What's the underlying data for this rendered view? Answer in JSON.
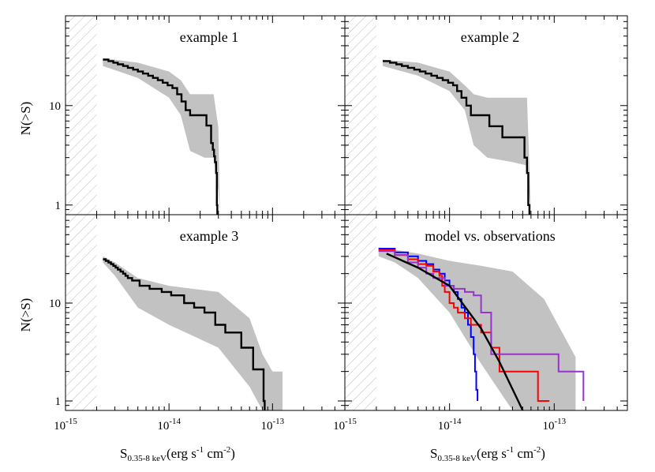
{
  "figure": {
    "ylabel": "N(>S)",
    "xlabel_main": "S",
    "xlabel_sub": "0.35-8 keV",
    "xlabel_units": "(erg s",
    "xlabel_sup1": "-1",
    "xlabel_mid": " cm",
    "xlabel_sup2": "-2",
    "xlabel_end": ")"
  },
  "chart_data": [
    {
      "type": "line",
      "title": "example 1",
      "xlabel": "",
      "ylabel": "N(>S)",
      "x_scale": "log",
      "y_scale": "log",
      "xlim": [
        1e-15,
        5e-13
      ],
      "ylim": [
        0.8,
        80
      ],
      "excluded_region_x": [
        1e-15,
        2e-15
      ],
      "step": {
        "name": "",
        "x": [
          2.3e-15,
          2.6e-15,
          2.9e-15,
          3.2e-15,
          3.6e-15,
          4e-15,
          4.5e-15,
          5e-15,
          5.6e-15,
          6.3e-15,
          7e-15,
          7.8e-15,
          8.7e-15,
          9.7e-15,
          1.08e-14,
          1.2e-14,
          1.32e-14,
          1.45e-14,
          1.6e-14,
          2.3e-14,
          2.55e-14,
          2.65e-14,
          2.72e-14,
          2.78e-14,
          2.85e-14,
          2.9e-14,
          2.93e-14
        ],
        "y": [
          29,
          28,
          27,
          26,
          25,
          24,
          23,
          22,
          21,
          20,
          19,
          18,
          17,
          16,
          15,
          13,
          11,
          9,
          8,
          6.3,
          4.2,
          3.6,
          3.1,
          2.7,
          2.1,
          1.0,
          0.8
        ]
      },
      "band": {
        "x": [
          2.3e-15,
          5e-15,
          1e-14,
          1.3e-14,
          1.6e-14,
          2.2e-14,
          2.7e-14,
          3e-14,
          3.1e-14
        ],
        "upper": [
          30,
          27,
          22,
          18,
          13,
          13,
          13,
          6,
          0.8
        ],
        "lower": [
          25,
          19,
          12,
          8,
          3.5,
          3.0,
          3.0,
          1.4,
          0.8
        ]
      }
    },
    {
      "type": "line",
      "title": "example 2",
      "xlabel": "",
      "ylabel": "",
      "x_scale": "log",
      "y_scale": "log",
      "xlim": [
        1e-15,
        5e-13
      ],
      "ylim": [
        0.8,
        80
      ],
      "excluded_region_x": [
        1e-15,
        2e-15
      ],
      "step": {
        "name": "",
        "x": [
          2.3e-15,
          2.7e-15,
          3.1e-15,
          3.5e-15,
          4e-15,
          4.6e-15,
          5.2e-15,
          5.9e-15,
          6.7e-15,
          7.6e-15,
          8.6e-15,
          9.7e-15,
          1.08e-14,
          1.18e-14,
          1.3e-14,
          1.45e-14,
          1.6e-14,
          2.4e-14,
          3.2e-14,
          5.2e-14,
          5.5e-14,
          5.65e-14,
          5.8e-14
        ],
        "y": [
          28,
          27,
          26,
          25,
          24,
          23,
          22,
          21,
          20,
          19,
          18,
          17,
          16,
          14,
          12,
          10,
          8,
          6.2,
          4.8,
          3.0,
          2.1,
          1.0,
          0.8
        ]
      },
      "band": {
        "x": [
          2.3e-15,
          5e-15,
          1e-14,
          1.4e-14,
          1.7e-14,
          2.3e-14,
          4e-14,
          5.5e-14,
          6e-14
        ],
        "upper": [
          29,
          27,
          22,
          16,
          13,
          12,
          12,
          12,
          0.8
        ],
        "lower": [
          25,
          20,
          14,
          9,
          4,
          3,
          2.7,
          2.5,
          0.8
        ]
      }
    },
    {
      "type": "line",
      "title": "example 3",
      "xlabel": "S_0.35-8 keV (erg s^-1 cm^-2)",
      "ylabel": "N(>S)",
      "x_scale": "log",
      "y_scale": "log",
      "xlim": [
        1e-15,
        5e-13
      ],
      "ylim": [
        0.8,
        80
      ],
      "excluded_region_x": [
        1e-15,
        2e-15
      ],
      "x_ticks": [
        "10^-15",
        "10^-14",
        "10^-13"
      ],
      "step": {
        "name": "",
        "x": [
          2.3e-15,
          2.45e-15,
          2.6e-15,
          2.75e-15,
          2.9e-15,
          3.05e-15,
          3.2e-15,
          3.4e-15,
          3.6e-15,
          3.8e-15,
          4e-15,
          4.4e-15,
          5.2e-15,
          6.5e-15,
          8.5e-15,
          1.05e-14,
          1.4e-14,
          1.75e-14,
          2.2e-14,
          2.8e-14,
          3.5e-14,
          5e-14,
          6.5e-14,
          8.2e-14,
          8.4e-14
        ],
        "y": [
          28,
          27,
          26,
          25,
          24,
          23,
          22,
          21,
          20,
          19,
          18,
          17,
          15,
          14,
          13,
          12,
          10,
          9,
          8.0,
          6.0,
          5.0,
          3.5,
          2.1,
          1.0,
          0.8
        ]
      },
      "band": {
        "x": [
          2.3e-15,
          3e-15,
          5e-15,
          1e-14,
          3e-14,
          6e-14,
          8e-14,
          1e-13,
          1.25e-13
        ],
        "upper": [
          30,
          26,
          18,
          15,
          13,
          7,
          3,
          2.0,
          2.0
        ],
        "lower": [
          26,
          19,
          9,
          6,
          3.5,
          1.4,
          0.8,
          0.8,
          0.8
        ]
      }
    },
    {
      "type": "line",
      "title": "model vs. observations",
      "xlabel": "S_0.35-8 keV (erg s^-1 cm^-2)",
      "ylabel": "",
      "x_scale": "log",
      "y_scale": "log",
      "xlim": [
        1e-15,
        5e-13
      ],
      "ylim": [
        0.8,
        80
      ],
      "excluded_region_x": [
        1e-15,
        2e-15
      ],
      "x_ticks": [
        "10^-15",
        "10^-14",
        "10^-13"
      ],
      "band": {
        "x": [
          2.1e-15,
          3e-15,
          5e-15,
          1e-14,
          2e-14,
          4e-14,
          8e-14,
          1.6e-13
        ],
        "upper": [
          37,
          35,
          32,
          27,
          24,
          21,
          11,
          2.8
        ],
        "lower": [
          30,
          26,
          18,
          8,
          2.4,
          0.8,
          0.8,
          0.8
        ]
      },
      "series": [
        {
          "name": "",
          "color": "#0000ff",
          "kind": "step",
          "x": [
            2.1e-15,
            3e-15,
            4e-15,
            5e-15,
            6e-15,
            7e-15,
            8e-15,
            9e-15,
            1e-14,
            1.1e-14,
            1.2e-14,
            1.3e-14,
            1.4e-14,
            1.5e-14,
            1.6e-14,
            1.7e-14,
            1.75e-14,
            1.8e-14,
            1.85e-14
          ],
          "y": [
            36,
            33,
            30,
            27,
            25,
            22,
            20,
            17,
            15,
            13,
            11,
            9,
            8,
            6,
            4.5,
            3.0,
            2.0,
            1.3,
            1.0
          ]
        },
        {
          "name": "",
          "color": "#ff0000",
          "kind": "step",
          "x": [
            2.1e-15,
            3e-15,
            4e-15,
            5e-15,
            6e-15,
            7e-15,
            8e-15,
            8.5e-15,
            9e-15,
            1e-14,
            1.1e-14,
            1.2e-14,
            1.4e-14,
            1.6e-14,
            2e-14,
            2.5e-14,
            3e-14,
            7e-14,
            9e-14
          ],
          "y": [
            35,
            31,
            28,
            25,
            24,
            21,
            19,
            15,
            13,
            10,
            9,
            8,
            7,
            6,
            5,
            3.5,
            2.0,
            1.0,
            1.0
          ]
        },
        {
          "name": "",
          "color": "#9933cc",
          "kind": "step",
          "x": [
            2.1e-15,
            3e-15,
            4e-15,
            5e-15,
            6e-15,
            7e-15,
            9e-15,
            1.1e-14,
            1.4e-14,
            1.7e-14,
            2e-14,
            2.5e-14,
            1.1e-13,
            1.9e-13
          ],
          "y": [
            34,
            31,
            26,
            23,
            20,
            18,
            15,
            14,
            13,
            12,
            8,
            3.0,
            2.0,
            1.0
          ]
        },
        {
          "name": "",
          "color": "#000000",
          "kind": "line",
          "x": [
            2.5e-15,
            5e-15,
            1e-14,
            2e-14,
            3e-14,
            5e-14
          ],
          "y": [
            32,
            23,
            15,
            5.5,
            2.5,
            0.8
          ]
        }
      ]
    }
  ]
}
